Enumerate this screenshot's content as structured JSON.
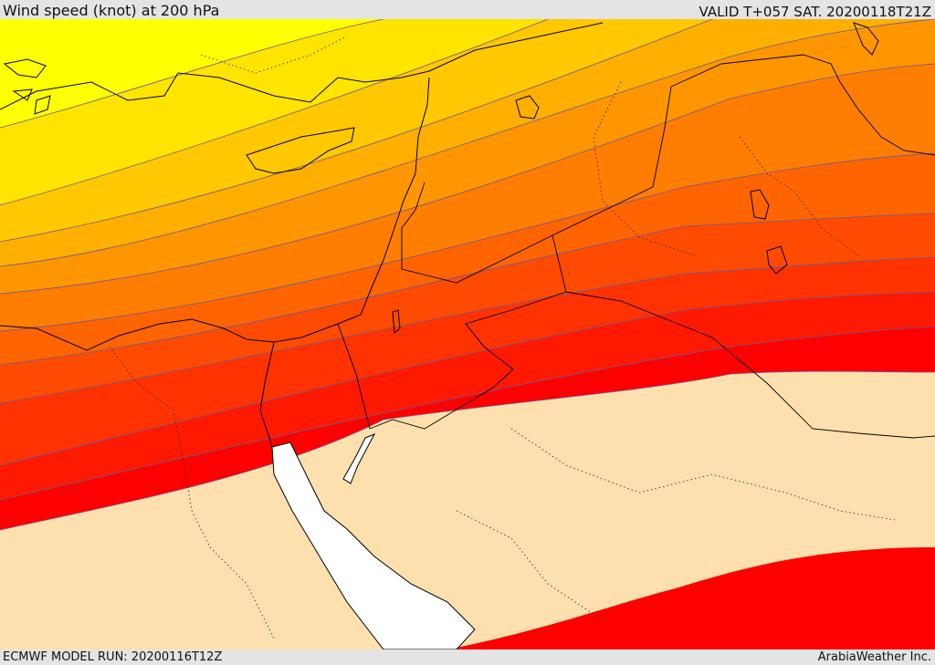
{
  "header": {
    "title": "Wind speed (knot) at 200 hPa",
    "valid_time": "VALID T+057 SAT. 20200118T21Z"
  },
  "footer": {
    "model_run": "ECMWF MODEL RUN: 20200116T12Z",
    "credit": "ArabiaWeather Inc."
  },
  "map": {
    "field": "wind speed",
    "level": "200 hPa",
    "band_colors": [
      "#ffff00",
      "#ffe400",
      "#ffc800",
      "#ffaf00",
      "#ff9600",
      "#ff7d00",
      "#ff6400",
      "#ff4b00",
      "#ff3200",
      "#ff1900",
      "#ff0000"
    ],
    "background_color": "#fde0ae",
    "sea_color": "#ffffff",
    "contour_color": "#6a5a9a",
    "coastline_color": "#000000"
  }
}
